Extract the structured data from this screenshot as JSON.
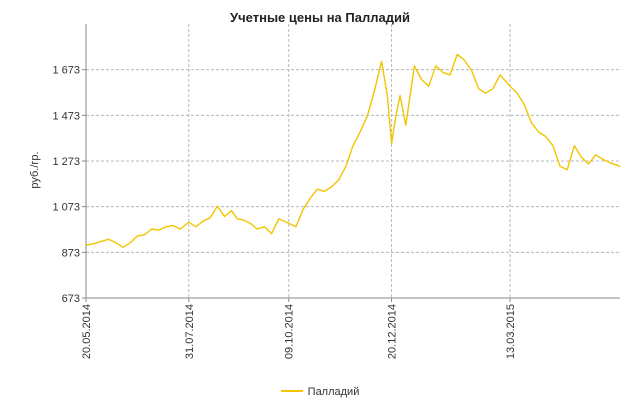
{
  "chart_data": {
    "type": "line",
    "title": "Учетные цены на Палладий",
    "xlabel": "",
    "ylabel": "руб./гр.",
    "ylim": [
      673,
      1873
    ],
    "yticks": [
      673,
      873,
      1073,
      1273,
      1473,
      1673
    ],
    "ytick_labels": [
      "673",
      "873",
      "1 073",
      "1 273",
      "1 473",
      "1 673"
    ],
    "xticks": [
      "2014-05-20",
      "2014-07-31",
      "2014-10-09",
      "2014-12-20",
      "2015-03-13"
    ],
    "xtick_labels": [
      "20.05.2014",
      "31.07.2014",
      "09.10.2014",
      "20.12.2014",
      "13.03.2015"
    ],
    "xlim": [
      "2014-05-20",
      "2015-05-29"
    ],
    "grid": true,
    "legend_position": "bottom",
    "colors": {
      "line": "#f2c500",
      "grid": "#b8b8b8",
      "axis": "#888888"
    },
    "series": [
      {
        "name": "Палладий",
        "x": [
          "2014-05-20",
          "2014-05-25",
          "2014-05-30",
          "2014-06-05",
          "2014-06-10",
          "2014-06-15",
          "2014-06-20",
          "2014-06-25",
          "2014-06-30",
          "2014-07-05",
          "2014-07-10",
          "2014-07-15",
          "2014-07-20",
          "2014-07-25",
          "2014-07-31",
          "2014-08-05",
          "2014-08-10",
          "2014-08-15",
          "2014-08-20",
          "2014-08-25",
          "2014-08-30",
          "2014-09-03",
          "2014-09-07",
          "2014-09-12",
          "2014-09-17",
          "2014-09-22",
          "2014-09-27",
          "2014-10-02",
          "2014-10-09",
          "2014-10-14",
          "2014-10-19",
          "2014-10-24",
          "2014-10-29",
          "2014-11-03",
          "2014-11-08",
          "2014-11-13",
          "2014-11-18",
          "2014-11-23",
          "2014-11-28",
          "2014-12-03",
          "2014-12-08",
          "2014-12-13",
          "2014-12-17",
          "2014-12-20",
          "2014-12-23",
          "2014-12-26",
          "2014-12-30",
          "2015-01-05",
          "2015-01-10",
          "2015-01-15",
          "2015-01-20",
          "2015-01-25",
          "2015-01-30",
          "2015-02-04",
          "2015-02-09",
          "2015-02-14",
          "2015-02-19",
          "2015-02-24",
          "2015-03-01",
          "2015-03-06",
          "2015-03-13",
          "2015-03-18",
          "2015-03-23",
          "2015-03-28",
          "2015-04-02",
          "2015-04-07",
          "2015-04-12",
          "2015-04-17",
          "2015-04-22",
          "2015-04-27",
          "2015-05-02",
          "2015-05-07",
          "2015-05-12",
          "2015-05-17",
          "2015-05-22",
          "2015-05-29"
        ],
        "values": [
          905,
          910,
          920,
          930,
          915,
          895,
          915,
          945,
          950,
          975,
          970,
          985,
          990,
          975,
          1005,
          985,
          1010,
          1025,
          1075,
          1030,
          1055,
          1020,
          1015,
          1000,
          975,
          985,
          955,
          1020,
          1000,
          985,
          1060,
          1110,
          1150,
          1140,
          1160,
          1190,
          1250,
          1340,
          1400,
          1470,
          1580,
          1710,
          1560,
          1350,
          1470,
          1560,
          1430,
          1690,
          1630,
          1600,
          1690,
          1660,
          1650,
          1740,
          1715,
          1670,
          1590,
          1570,
          1590,
          1650,
          1600,
          1570,
          1520,
          1440,
          1400,
          1380,
          1340,
          1250,
          1235,
          1340,
          1290,
          1260,
          1300,
          1280,
          1265,
          1250
        ]
      }
    ]
  }
}
